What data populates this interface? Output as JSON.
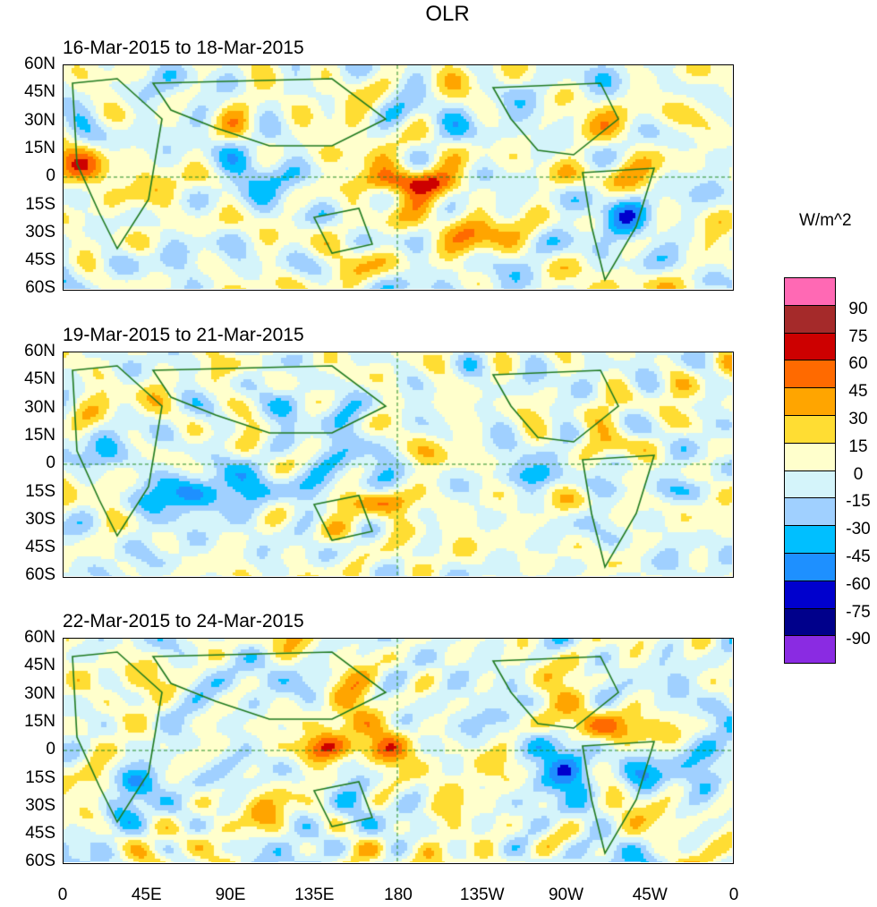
{
  "chart_data": {
    "type": "heatmap",
    "title": "OLR",
    "units_label": "W/m^2",
    "panels": [
      {
        "subtitle": "16-Mar-2015 to 18-Mar-2015"
      },
      {
        "subtitle": "19-Mar-2015 to 21-Mar-2015"
      },
      {
        "subtitle": "22-Mar-2015 to 24-Mar-2015"
      }
    ],
    "lat_ticks": [
      "60N",
      "45N",
      "30N",
      "15N",
      "0",
      "15S",
      "30S",
      "45S",
      "60S"
    ],
    "lon_ticks": [
      "0",
      "45E",
      "90E",
      "135E",
      "180",
      "135W",
      "90W",
      "45W",
      "0"
    ],
    "ylim": [
      -60,
      60
    ],
    "xlim": [
      0,
      360
    ],
    "levels": [
      "90",
      "75",
      "60",
      "45",
      "30",
      "15",
      "0",
      "-15",
      "-30",
      "-45",
      "-60",
      "-75",
      "-90"
    ],
    "colors": [
      "#ff69b4",
      "#a52a2a",
      "#cd0000",
      "#ff6a00",
      "#ffa500",
      "#ffdd33",
      "#ffffcc",
      "#d4f4fa",
      "#a0d0ff",
      "#00bfff",
      "#1e90ff",
      "#0000cd",
      "#00008b",
      "#8a2be2"
    ]
  }
}
